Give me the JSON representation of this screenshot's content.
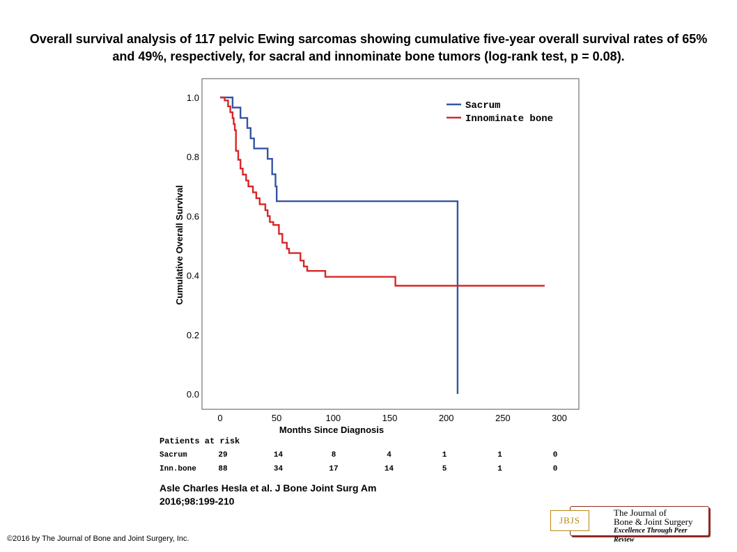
{
  "title": "Overall survival analysis of 117 pelvic Ewing sarcomas showing cumulative five-year overall survival rates of 65% and 49%, respectively, for sacral and innominate bone tumors (log-rank test, p = 0.08).",
  "chart_data": {
    "type": "line",
    "subtype": "kaplan-meier step",
    "xlabel": "Months Since Diagnosis",
    "ylabel": "Cumulative Overall Survival",
    "xlim": [
      0,
      300
    ],
    "ylim": [
      0.0,
      1.0
    ],
    "xticks": [
      "0",
      "50",
      "100",
      "150",
      "200",
      "250",
      "300"
    ],
    "yticks": [
      "0.0",
      "0.2",
      "0.4",
      "0.6",
      "0.8",
      "1.0"
    ],
    "grid": false,
    "legend_position": "top-right",
    "series": [
      {
        "name": "Sacrum",
        "color": "#3454a4",
        "points": [
          [
            0,
            1.0
          ],
          [
            11,
            1.0
          ],
          [
            11,
            0.966
          ],
          [
            18,
            0.966
          ],
          [
            18,
            0.931
          ],
          [
            24,
            0.931
          ],
          [
            24,
            0.897
          ],
          [
            27,
            0.897
          ],
          [
            27,
            0.862
          ],
          [
            30,
            0.862
          ],
          [
            30,
            0.828
          ],
          [
            42,
            0.828
          ],
          [
            42,
            0.793
          ],
          [
            46,
            0.793
          ],
          [
            46,
            0.741
          ],
          [
            49,
            0.741
          ],
          [
            49,
            0.7
          ],
          [
            50,
            0.7
          ],
          [
            50,
            0.65
          ],
          [
            210,
            0.65
          ],
          [
            210,
            0.0
          ]
        ]
      },
      {
        "name": "Innominate bone",
        "color": "#d62728",
        "points": [
          [
            0,
            1.0
          ],
          [
            4,
            1.0
          ],
          [
            4,
            0.99
          ],
          [
            7,
            0.99
          ],
          [
            7,
            0.97
          ],
          [
            9,
            0.97
          ],
          [
            9,
            0.95
          ],
          [
            11,
            0.95
          ],
          [
            11,
            0.93
          ],
          [
            12,
            0.93
          ],
          [
            12,
            0.91
          ],
          [
            13,
            0.91
          ],
          [
            13,
            0.89
          ],
          [
            14,
            0.89
          ],
          [
            14,
            0.82
          ],
          [
            16,
            0.82
          ],
          [
            16,
            0.79
          ],
          [
            18,
            0.79
          ],
          [
            18,
            0.76
          ],
          [
            20,
            0.76
          ],
          [
            20,
            0.74
          ],
          [
            23,
            0.74
          ],
          [
            23,
            0.72
          ],
          [
            25,
            0.72
          ],
          [
            25,
            0.7
          ],
          [
            29,
            0.7
          ],
          [
            29,
            0.68
          ],
          [
            32,
            0.68
          ],
          [
            32,
            0.66
          ],
          [
            35,
            0.66
          ],
          [
            35,
            0.64
          ],
          [
            40,
            0.64
          ],
          [
            40,
            0.62
          ],
          [
            42,
            0.62
          ],
          [
            42,
            0.6
          ],
          [
            44,
            0.6
          ],
          [
            44,
            0.58
          ],
          [
            47,
            0.58
          ],
          [
            47,
            0.57
          ],
          [
            52,
            0.57
          ],
          [
            52,
            0.54
          ],
          [
            55,
            0.54
          ],
          [
            55,
            0.51
          ],
          [
            59,
            0.51
          ],
          [
            59,
            0.49
          ],
          [
            61,
            0.49
          ],
          [
            61,
            0.475
          ],
          [
            71,
            0.475
          ],
          [
            71,
            0.45
          ],
          [
            74,
            0.45
          ],
          [
            74,
            0.43
          ],
          [
            77,
            0.43
          ],
          [
            77,
            0.415
          ],
          [
            93,
            0.415
          ],
          [
            93,
            0.395
          ],
          [
            155,
            0.395
          ],
          [
            155,
            0.365
          ],
          [
            287,
            0.365
          ]
        ]
      }
    ],
    "risk_table": {
      "title": "Patients at risk",
      "rows": [
        {
          "label": "Sacrum",
          "values": [
            "29",
            "14",
            "8",
            "4",
            "1",
            "1",
            "0"
          ]
        },
        {
          "label": "Inn.bone",
          "values": [
            "88",
            "34",
            "17",
            "14",
            "5",
            "1",
            "0"
          ]
        }
      ]
    }
  },
  "citation": {
    "line1": "Asle Charles Hesla et al. J Bone Joint Surg Am",
    "line2": "2016;98:199-210"
  },
  "copyright": "©2016 by The Journal of Bone and Joint Surgery, Inc.",
  "logo": {
    "mark": "JBJS",
    "line1": "The Journal of",
    "line2": "Bone & Joint Surgery",
    "line3": "Excellence Through Peer Review"
  }
}
